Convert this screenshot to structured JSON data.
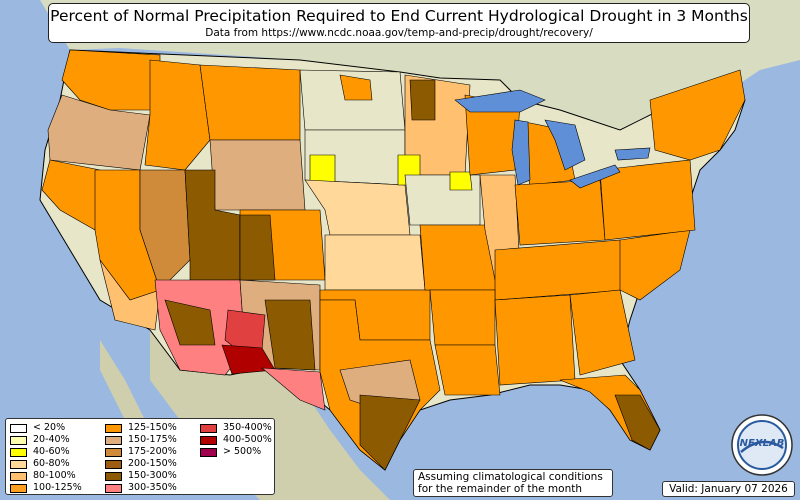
{
  "title": "Percent of Normal Precipitation Required to End Current Hydrological Drought in 3 Months",
  "subtitle": "Data from https://www.ncdc.noaa.gov/temp-and-precip/drought/recovery/",
  "legend": [
    {
      "label": "< 20%",
      "color": "#ffffff"
    },
    {
      "label": "20-40%",
      "color": "#ffffb0"
    },
    {
      "label": "40-60%",
      "color": "#ffff00"
    },
    {
      "label": "60-80%",
      "color": "#ffd89a"
    },
    {
      "label": "80-100%",
      "color": "#ffc070"
    },
    {
      "label": "100-125%",
      "color": "#ffa020"
    },
    {
      "label": "125-150%",
      "color": "#ff9800"
    },
    {
      "label": "150-175%",
      "color": "#dfae7f"
    },
    {
      "label": "175-200%",
      "color": "#cf8a3a"
    },
    {
      "label": "200-150%",
      "color": "#9c5c12"
    },
    {
      "label": "150-300%",
      "color": "#8c5a00"
    },
    {
      "label": "300-350%",
      "color": "#ff8080"
    },
    {
      "label": "350-400%",
      "color": "#e04040"
    },
    {
      "label": "400-500%",
      "color": "#b00000"
    },
    {
      "label": "> 500%",
      "color": "#a0004c"
    }
  ],
  "note_line1": "Assuming climatological conditions",
  "note_line2": "for the remainder of the month",
  "valid": "Valid: January 07 2026",
  "logo_text": "NEXLAB",
  "colors": {
    "ocean": "#9bb8e0",
    "land_base": "#e8e6c8",
    "canada_mexico": "#d8d8b8",
    "lakes": "#5f8fd6"
  }
}
